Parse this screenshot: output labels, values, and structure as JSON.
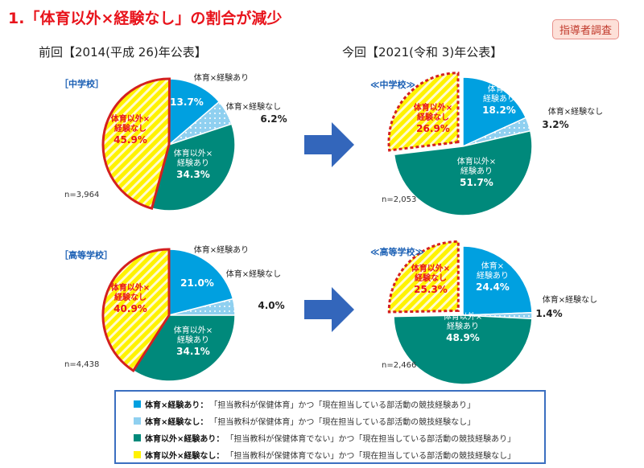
{
  "title": "1.「体育以外×経験なし」の割合が減少",
  "badge": "指導者調査",
  "periods": {
    "previous": "前回【2014(平成 26)年公表】",
    "current": "今回【2021(令和 3)年公表】"
  },
  "colors": {
    "pe_exp": "#00a0e0",
    "pe_noexp": "#8fd0f0",
    "nonpe_exp": "#00897b",
    "nonpe_noexp": "#fff200",
    "highlight": "#e8141c"
  },
  "chart_data": [
    {
      "type": "pie",
      "school": "［中学校］",
      "period": "前回",
      "n": "n=3,964",
      "categories": [
        "体育×経験あり",
        "体育×経験なし",
        "体育以外×経験あり",
        "体育以外×経験なし"
      ],
      "values": [
        13.7,
        6.2,
        34.3,
        45.9
      ],
      "labels": [
        "13.7%",
        "6.2%",
        "34.3%",
        "45.9%"
      ]
    },
    {
      "type": "pie",
      "school": "≪中学校≫",
      "period": "今回",
      "n": "n=2,053",
      "categories": [
        "体育×経験あり",
        "体育×経験なし",
        "体育以外×経験あり",
        "体育以外×経験なし"
      ],
      "values": [
        18.2,
        3.2,
        51.7,
        26.9
      ],
      "labels": [
        "18.2%",
        "3.2%",
        "51.7%",
        "26.9%"
      ]
    },
    {
      "type": "pie",
      "school": "［高等学校］",
      "period": "前回",
      "n": "n=4,438",
      "categories": [
        "体育×経験あり",
        "体育×経験なし",
        "体育以外×経験あり",
        "体育以外×経験なし"
      ],
      "values": [
        21.0,
        4.0,
        34.1,
        40.9
      ],
      "labels": [
        "21.0%",
        "4.0%",
        "34.1%",
        "40.9%"
      ]
    },
    {
      "type": "pie",
      "school": "≪高等学校≫",
      "period": "今回",
      "n": "n=2,466",
      "categories": [
        "体育×経験あり",
        "体育×経験なし",
        "体育以外×経験あり",
        "体育以外×経験なし"
      ],
      "values": [
        24.4,
        1.4,
        48.9,
        25.3
      ],
      "labels": [
        "24.4%",
        "1.4%",
        "48.9%",
        "25.3%"
      ]
    }
  ],
  "legend": [
    {
      "name": "体育×経験あり：",
      "desc": "「担当教科が保健体育」かつ「現在担当している部活動の競技経験あり」"
    },
    {
      "name": "体育×経験なし：",
      "desc": "「担当教科が保健体育」かつ「現在担当している部活動の競技経験なし」"
    },
    {
      "name": "体育以外×経験あり：",
      "desc": "「担当教科が保健体育でない」かつ「現在担当している部活動の競技経験あり」"
    },
    {
      "name": "体育以外×経験なし：",
      "desc": "「担当教科が保健体育でない」かつ「現在担当している部活動の競技経験なし」"
    }
  ]
}
